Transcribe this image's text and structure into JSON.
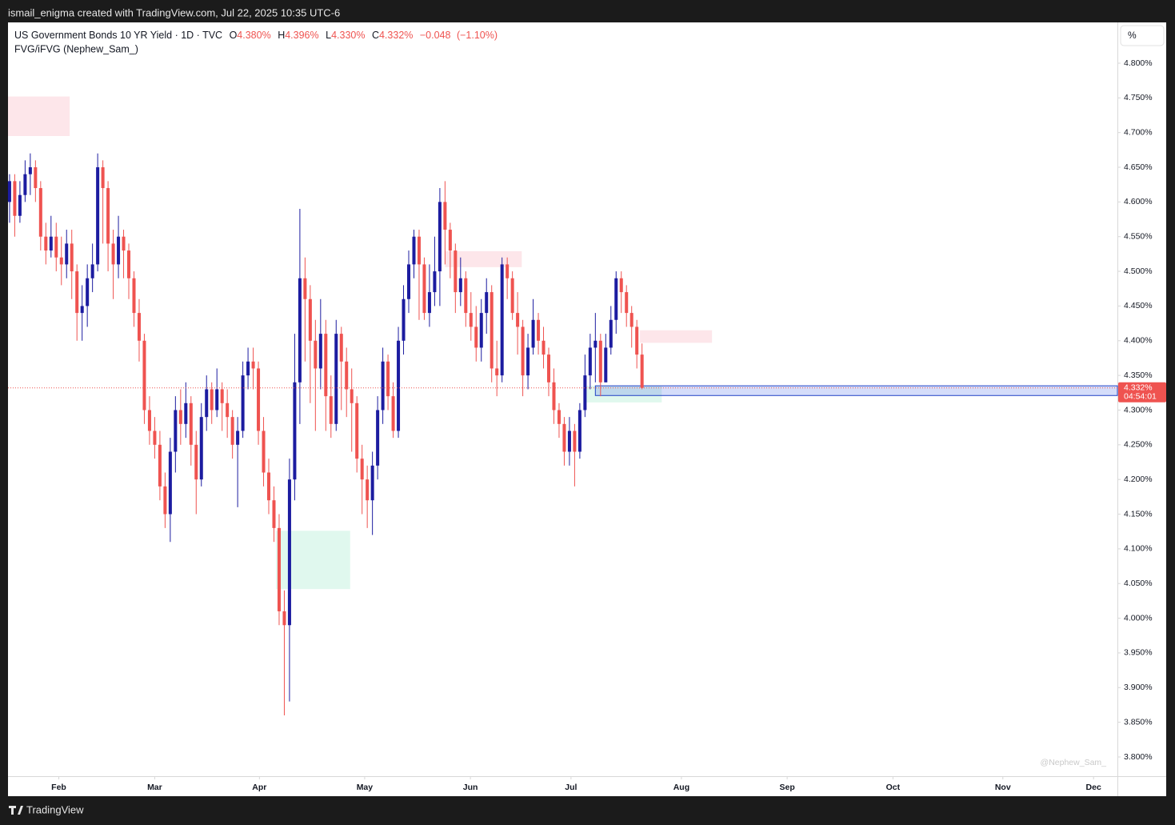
{
  "header": "ismail_enigma created with TradingView.com, Jul 22, 2025 10:35 UTC-6",
  "brand": "TradingView",
  "chart_data": {
    "type": "candlestick",
    "legend": {
      "symbol": "US Government Bonds 10 YR Yield · 1D · TVC",
      "ohlc": [
        {
          "key": "O",
          "value": 4.38,
          "label": "4.380%"
        },
        {
          "key": "H",
          "value": 4.396,
          "label": "4.396%"
        },
        {
          "key": "L",
          "value": 4.33,
          "label": "4.330%"
        },
        {
          "key": "C",
          "value": 4.332,
          "label": "4.332%"
        }
      ],
      "change": {
        "value": -0.048,
        "label": "−0.048"
      },
      "change_pct": {
        "value": -1.1,
        "label": "(−1.10%)"
      },
      "indicator": "FVG/iFVG (Nephew_Sam_)"
    },
    "unit_button": "%",
    "watermark": "@Nephew_Sam_",
    "up_color": "#1c1ca0",
    "down_color": "#ef5350",
    "open": [
      4.6,
      4.63,
      4.58,
      4.61,
      4.64,
      4.65,
      4.62,
      4.55,
      4.53,
      4.55,
      4.52,
      4.51,
      4.54,
      4.5,
      4.44,
      4.45,
      4.49,
      4.51,
      4.65,
      4.62,
      4.54,
      4.51,
      4.55,
      4.53,
      4.49,
      4.44,
      4.4,
      4.3,
      4.27,
      4.25,
      4.19,
      4.15,
      4.24,
      4.3,
      4.28,
      4.31,
      4.25,
      4.2,
      4.29,
      4.33,
      4.3,
      4.33,
      4.31,
      4.29,
      4.25,
      4.27,
      4.35,
      4.37,
      4.36,
      4.27,
      4.21,
      4.17,
      4.13,
      4.01,
      3.99,
      4.2,
      4.34,
      4.49,
      4.46,
      4.4,
      4.36,
      4.41,
      4.32,
      4.28,
      4.41,
      4.37,
      4.33,
      4.31,
      4.23,
      4.2,
      4.17,
      4.22,
      4.3,
      4.37,
      4.32,
      4.27,
      4.4,
      4.46,
      4.51,
      4.55,
      4.51,
      4.44,
      4.47,
      4.5,
      4.6,
      4.56,
      4.53,
      4.47,
      4.49,
      4.44,
      4.42,
      4.39,
      4.44,
      4.47,
      4.36,
      4.35,
      4.51,
      4.49,
      4.44,
      4.42,
      4.35,
      4.39,
      4.43,
      4.4,
      4.38,
      4.34,
      4.3,
      4.28,
      4.24,
      4.27,
      4.24,
      4.3,
      4.35,
      4.39,
      4.4,
      4.34,
      4.39,
      4.43,
      4.49,
      4.47,
      4.44,
      4.42,
      4.38
    ],
    "high": [
      4.64,
      4.64,
      4.63,
      4.66,
      4.67,
      4.66,
      4.63,
      4.57,
      4.58,
      4.57,
      4.55,
      4.56,
      4.56,
      4.51,
      4.48,
      4.51,
      4.54,
      4.67,
      4.66,
      4.63,
      4.56,
      4.58,
      4.56,
      4.54,
      4.5,
      4.46,
      4.41,
      4.32,
      4.29,
      4.27,
      4.21,
      4.26,
      4.32,
      4.33,
      4.34,
      4.32,
      4.27,
      4.31,
      4.35,
      4.34,
      4.36,
      4.34,
      4.33,
      4.3,
      4.29,
      4.37,
      4.39,
      4.39,
      4.37,
      4.29,
      4.23,
      4.19,
      4.15,
      4.04,
      4.23,
      4.41,
      4.59,
      4.52,
      4.48,
      4.43,
      4.46,
      4.43,
      4.35,
      4.43,
      4.42,
      4.39,
      4.36,
      4.32,
      4.25,
      4.22,
      4.24,
      4.32,
      4.39,
      4.38,
      4.34,
      4.42,
      4.48,
      4.53,
      4.56,
      4.56,
      4.52,
      4.51,
      4.55,
      4.62,
      4.63,
      4.57,
      4.54,
      4.52,
      4.5,
      4.47,
      4.45,
      4.46,
      4.49,
      4.48,
      4.4,
      4.52,
      4.52,
      4.5,
      4.47,
      4.43,
      4.41,
      4.46,
      4.44,
      4.42,
      4.39,
      4.36,
      4.31,
      4.29,
      4.29,
      4.28,
      4.31,
      4.38,
      4.41,
      4.44,
      4.41,
      4.41,
      4.45,
      4.5,
      4.5,
      4.48,
      4.45,
      4.43,
      4.396
    ],
    "low": [
      4.57,
      4.55,
      4.57,
      4.6,
      4.61,
      4.6,
      4.53,
      4.51,
      4.52,
      4.5,
      4.48,
      4.49,
      4.46,
      4.4,
      4.4,
      4.42,
      4.47,
      4.5,
      4.54,
      4.5,
      4.46,
      4.49,
      4.49,
      4.46,
      4.42,
      4.37,
      4.28,
      4.25,
      4.23,
      4.17,
      4.13,
      4.11,
      4.21,
      4.25,
      4.26,
      4.22,
      4.15,
      4.19,
      4.27,
      4.28,
      4.29,
      4.27,
      4.26,
      4.23,
      4.16,
      4.26,
      4.33,
      4.33,
      4.25,
      4.19,
      4.15,
      4.11,
      3.99,
      3.86,
      3.88,
      4.17,
      4.28,
      4.37,
      4.31,
      4.27,
      4.33,
      4.27,
      4.26,
      4.27,
      4.3,
      4.29,
      4.24,
      4.21,
      4.15,
      4.13,
      4.12,
      4.2,
      4.28,
      4.3,
      4.26,
      4.26,
      4.38,
      4.44,
      4.49,
      4.43,
      4.43,
      4.42,
      4.45,
      4.45,
      4.51,
      4.49,
      4.44,
      4.45,
      4.42,
      4.4,
      4.37,
      4.37,
      4.41,
      4.34,
      4.32,
      4.34,
      4.46,
      4.43,
      4.38,
      4.32,
      4.33,
      4.38,
      4.38,
      4.36,
      4.32,
      4.28,
      4.26,
      4.22,
      4.22,
      4.19,
      4.23,
      4.29,
      4.33,
      4.34,
      4.32,
      4.34,
      4.38,
      4.41,
      4.44,
      4.42,
      4.39,
      4.36,
      4.33
    ],
    "close": [
      4.63,
      4.58,
      4.61,
      4.64,
      4.65,
      4.62,
      4.55,
      4.53,
      4.55,
      4.52,
      4.51,
      4.54,
      4.5,
      4.44,
      4.45,
      4.49,
      4.51,
      4.65,
      4.62,
      4.54,
      4.51,
      4.55,
      4.53,
      4.49,
      4.44,
      4.4,
      4.3,
      4.27,
      4.25,
      4.19,
      4.15,
      4.24,
      4.3,
      4.28,
      4.31,
      4.25,
      4.2,
      4.29,
      4.33,
      4.3,
      4.33,
      4.31,
      4.29,
      4.25,
      4.27,
      4.35,
      4.37,
      4.36,
      4.27,
      4.21,
      4.17,
      4.13,
      4.01,
      3.99,
      4.2,
      4.34,
      4.49,
      4.46,
      4.4,
      4.36,
      4.41,
      4.32,
      4.28,
      4.41,
      4.37,
      4.33,
      4.31,
      4.23,
      4.2,
      4.17,
      4.22,
      4.3,
      4.37,
      4.32,
      4.27,
      4.4,
      4.46,
      4.51,
      4.55,
      4.51,
      4.44,
      4.47,
      4.5,
      4.6,
      4.56,
      4.53,
      4.47,
      4.49,
      4.44,
      4.42,
      4.39,
      4.44,
      4.47,
      4.36,
      4.35,
      4.51,
      4.49,
      4.44,
      4.42,
      4.35,
      4.39,
      4.43,
      4.4,
      4.38,
      4.34,
      4.3,
      4.28,
      4.24,
      4.27,
      4.24,
      4.3,
      4.35,
      4.39,
      4.4,
      4.34,
      4.39,
      4.43,
      4.49,
      4.47,
      4.44,
      4.42,
      4.38,
      4.332
    ],
    "xlim": [
      -0.3,
      213.7
    ],
    "xticks": [
      {
        "value": 9.5,
        "label": "Feb"
      },
      {
        "value": 28,
        "label": "Mar"
      },
      {
        "value": 48.2,
        "label": "Apr"
      },
      {
        "value": 68.5,
        "label": "May"
      },
      {
        "value": 88.9,
        "label": "Jun"
      },
      {
        "value": 108.3,
        "label": "Jul"
      },
      {
        "value": 129.6,
        "label": "Aug"
      },
      {
        "value": 150,
        "label": "Sep"
      },
      {
        "value": 170.4,
        "label": "Oct"
      },
      {
        "value": 191.6,
        "label": "Nov"
      },
      {
        "value": 209.1,
        "label": "Dec"
      }
    ],
    "ylim": [
      3.7723,
      4.8588
    ],
    "yticks": [
      {
        "value": 3.8,
        "label": "3.800%"
      },
      {
        "value": 3.85,
        "label": "3.850%"
      },
      {
        "value": 3.9,
        "label": "3.900%"
      },
      {
        "value": 3.95,
        "label": "3.950%"
      },
      {
        "value": 4.0,
        "label": "4.000%"
      },
      {
        "value": 4.05,
        "label": "4.050%"
      },
      {
        "value": 4.1,
        "label": "4.100%"
      },
      {
        "value": 4.15,
        "label": "4.150%"
      },
      {
        "value": 4.2,
        "label": "4.200%"
      },
      {
        "value": 4.25,
        "label": "4.250%"
      },
      {
        "value": 4.3,
        "label": "4.300%"
      },
      {
        "value": 4.35,
        "label": "4.350%"
      },
      {
        "value": 4.4,
        "label": "4.400%"
      },
      {
        "value": 4.45,
        "label": "4.450%"
      },
      {
        "value": 4.5,
        "label": "4.500%"
      },
      {
        "value": 4.55,
        "label": "4.550%"
      },
      {
        "value": 4.6,
        "label": "4.600%"
      },
      {
        "value": 4.65,
        "label": "4.650%"
      },
      {
        "value": 4.7,
        "label": "4.700%"
      },
      {
        "value": 4.75,
        "label": "4.750%"
      },
      {
        "value": 4.8,
        "label": "4.800%"
      }
    ],
    "zones": [
      {
        "start": -0.3,
        "end": 11.6,
        "top": 4.752,
        "bottom": 4.695,
        "color": "rgba(244,143,158,0.22)"
      },
      {
        "start": 84,
        "end": 98.8,
        "top": 4.529,
        "bottom": 4.506,
        "color": "rgba(244,143,158,0.22)"
      },
      {
        "start": 121.6,
        "end": 135.5,
        "top": 4.415,
        "bottom": 4.397,
        "color": "rgba(244,143,158,0.22)"
      },
      {
        "start": 51.4,
        "end": 65.7,
        "top": 4.126,
        "bottom": 4.042,
        "color": "rgba(102,222,170,0.2)"
      },
      {
        "start": 110.8,
        "end": 125.8,
        "top": 4.335,
        "bottom": 4.311,
        "color": "rgba(102,222,170,0.2)"
      },
      {
        "start": 113,
        "end": 213.7,
        "top": 4.335,
        "bottom": 4.321,
        "color": "rgba(66,100,230,0.22)",
        "border": "#2141c5"
      }
    ],
    "last_price": {
      "value": 4.332,
      "label": "4.332%"
    },
    "countdown": "04:54:01"
  }
}
